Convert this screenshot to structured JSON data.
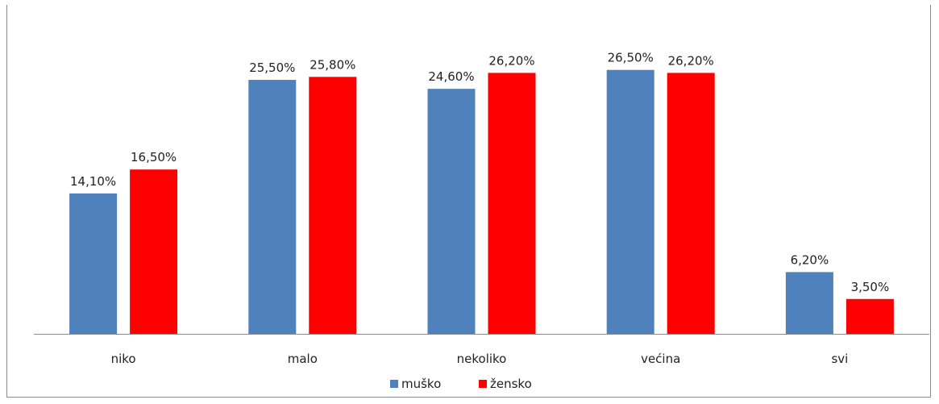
{
  "chart_data": {
    "type": "bar",
    "title": "",
    "categories": [
      "niko",
      "malo",
      "nekoliko",
      "većina",
      "svi"
    ],
    "series": [
      {
        "name": "muško",
        "color": "#4F81BD",
        "values": [
          14.1,
          25.5,
          24.6,
          26.5,
          6.2
        ],
        "labels": [
          "14,10%",
          "25,50%",
          "24,60%",
          "26,50%",
          "6,20%"
        ]
      },
      {
        "name": "žensko",
        "color": "#FF0000",
        "values": [
          16.5,
          25.8,
          26.2,
          26.2,
          3.5
        ],
        "labels": [
          "16,50%",
          "25,80%",
          "26,20%",
          "26,20%",
          "3,50%"
        ]
      }
    ],
    "ylim": [
      0,
      28.5
    ],
    "grid": false,
    "legend": "bottom"
  }
}
